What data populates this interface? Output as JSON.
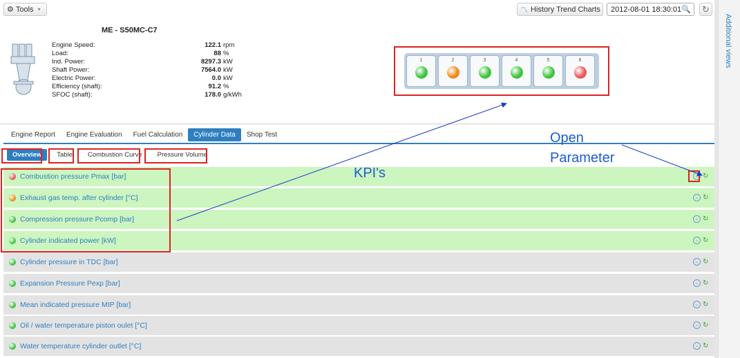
{
  "toolbar": {
    "tools_label": "Tools",
    "history_label": "History Trend Charts",
    "date_value": "2012-08-01 18:30:01"
  },
  "sidebar": {
    "label": "Additional views"
  },
  "engine": {
    "title": "ME - S50MC-C7",
    "stats": [
      {
        "label": "Engine Speed:",
        "value": "122.1",
        "unit": "rpm"
      },
      {
        "label": "Load:",
        "value": "88",
        "unit": "%"
      },
      {
        "label": "Ind. Power:",
        "value": "8297.3",
        "unit": "kW"
      },
      {
        "label": "Shaft Power:",
        "value": "7564.0",
        "unit": "kW"
      },
      {
        "label": "Electric Power:",
        "value": "0.0",
        "unit": "kW"
      },
      {
        "label": "Efficiency (shaft):",
        "value": "91.2",
        "unit": "%"
      },
      {
        "label": "SFOC (shaft):",
        "value": "178.0",
        "unit": "g/kWh"
      }
    ]
  },
  "cylinders": [
    {
      "num": "1",
      "color": "#3fc43f"
    },
    {
      "num": "2",
      "color": "#f08a1a"
    },
    {
      "num": "3",
      "color": "#3fc43f"
    },
    {
      "num": "4",
      "color": "#3fc43f"
    },
    {
      "num": "5",
      "color": "#3fc43f"
    },
    {
      "num": "6",
      "color": "#e85a5a"
    }
  ],
  "tabs": [
    "Engine Report",
    "Engine Evaluation",
    "Fuel Calculation",
    "Cylinder Data",
    "Shop Test"
  ],
  "subtabs": [
    "Overview",
    "Table",
    "Combustion Curve",
    "Pressure Volume"
  ],
  "parameters": [
    {
      "label": "Combustion pressure Pmax [bar]",
      "status": "#e85a5a",
      "kpi": true
    },
    {
      "label": "Exhaust gas temp. after cylinder [°C]",
      "status": "#f08a1a",
      "kpi": true
    },
    {
      "label": "Compression pressure Pcomp [bar]",
      "status": "#3fc43f",
      "kpi": true
    },
    {
      "label": "Cylinder indicated power [kW]",
      "status": "#3fc43f",
      "kpi": true
    },
    {
      "label": "Cylinder pressure in TDC [bar]",
      "status": "#3fc43f",
      "kpi": false
    },
    {
      "label": "Expansion Pressure Pexp [bar]",
      "status": "#3fc43f",
      "kpi": false
    },
    {
      "label": "Mean indicated pressure MIP [bar]",
      "status": "#3fc43f",
      "kpi": false
    },
    {
      "label": "Oil / water temperature piston oulet [°C]",
      "status": "#3fc43f",
      "kpi": false
    },
    {
      "label": "Water temperature cylinder outlet [°C]",
      "status": "#3fc43f",
      "kpi": false
    }
  ],
  "annotations": {
    "kpi": "KPI's",
    "open_line1": "Open",
    "open_line2": "Parameter"
  }
}
